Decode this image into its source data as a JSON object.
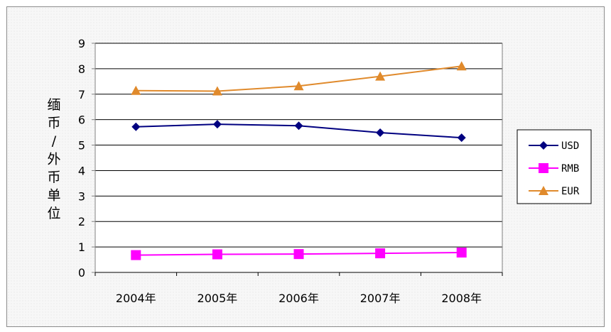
{
  "chart_data": {
    "type": "line",
    "title": "",
    "xlabel": "",
    "ylabel": "缅币/外币单位",
    "categories": [
      "2004年",
      "2005年",
      "2006年",
      "2007年",
      "2008年"
    ],
    "ylim": [
      0,
      9
    ],
    "yticks": [
      "0",
      "1",
      "2",
      "3",
      "4",
      "5",
      "6",
      "7",
      "8",
      "9"
    ],
    "grid": true,
    "legend_position": "right",
    "series": [
      {
        "name": "USD",
        "values": [
          5.72,
          5.82,
          5.76,
          5.49,
          5.29
        ],
        "color": "#000080",
        "marker": "diamond"
      },
      {
        "name": "RMB",
        "values": [
          0.68,
          0.71,
          0.72,
          0.75,
          0.78
        ],
        "color": "#ff00ff",
        "marker": "square"
      },
      {
        "name": "EUR",
        "values": [
          7.14,
          7.12,
          7.32,
          7.7,
          8.1
        ],
        "color": "#e08a2c",
        "marker": "triangle"
      }
    ]
  }
}
